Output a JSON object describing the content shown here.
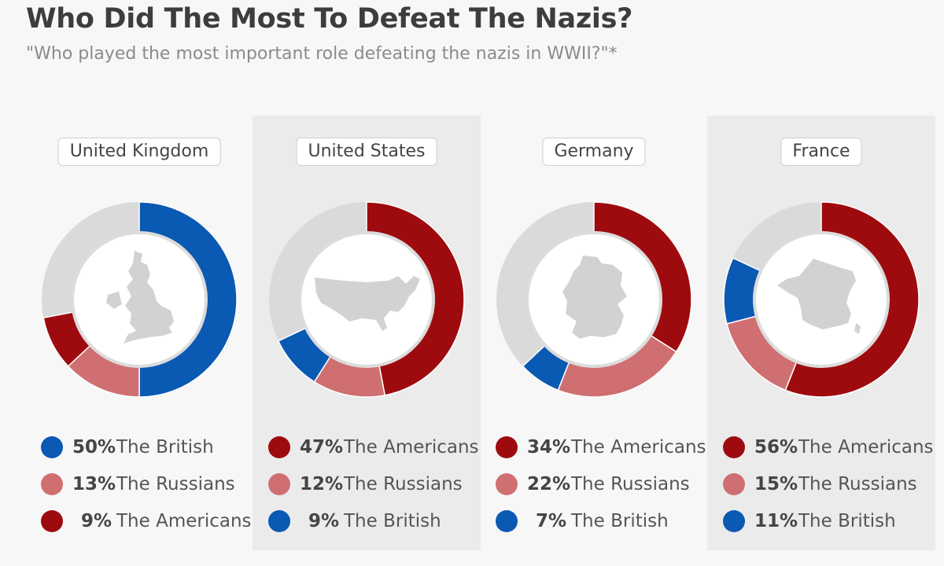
{
  "title": "Who Did The Most To Defeat The Nazis?",
  "subtitle": "\"Who played the most important role defeating the nazis in WWII?\"*",
  "colors": {
    "british": "#0a59b3",
    "americans": "#9e0b0f",
    "russians": "#cf6f71",
    "other": "#dadada",
    "map": "#d2d2d2"
  },
  "chart_data": [
    {
      "type": "pie",
      "country": "United Kingdom",
      "slices": [
        {
          "label": "The British",
          "value": 50,
          "display": "50%",
          "color_key": "british"
        },
        {
          "label": "The Russians",
          "value": 13,
          "display": "13%",
          "color_key": "russians"
        },
        {
          "label": "The Americans",
          "value": 9,
          "display": "9%",
          "color_key": "americans"
        }
      ]
    },
    {
      "type": "pie",
      "country": "United States",
      "slices": [
        {
          "label": "The Americans",
          "value": 47,
          "display": "47%",
          "color_key": "americans"
        },
        {
          "label": "The Russians",
          "value": 12,
          "display": "12%",
          "color_key": "russians"
        },
        {
          "label": "The British",
          "value": 9,
          "display": "9%",
          "color_key": "british"
        }
      ]
    },
    {
      "type": "pie",
      "country": "Germany",
      "slices": [
        {
          "label": "The Americans",
          "value": 34,
          "display": "34%",
          "color_key": "americans"
        },
        {
          "label": "The Russians",
          "value": 22,
          "display": "22%",
          "color_key": "russians"
        },
        {
          "label": "The British",
          "value": 7,
          "display": "7%",
          "color_key": "british"
        }
      ]
    },
    {
      "type": "pie",
      "country": "France",
      "slices": [
        {
          "label": "The Americans",
          "value": 56,
          "display": "56%",
          "color_key": "americans"
        },
        {
          "label": "The Russians",
          "value": 15,
          "display": "15%",
          "color_key": "russians"
        },
        {
          "label": "The British",
          "value": 11,
          "display": "11%",
          "color_key": "british"
        }
      ]
    }
  ]
}
